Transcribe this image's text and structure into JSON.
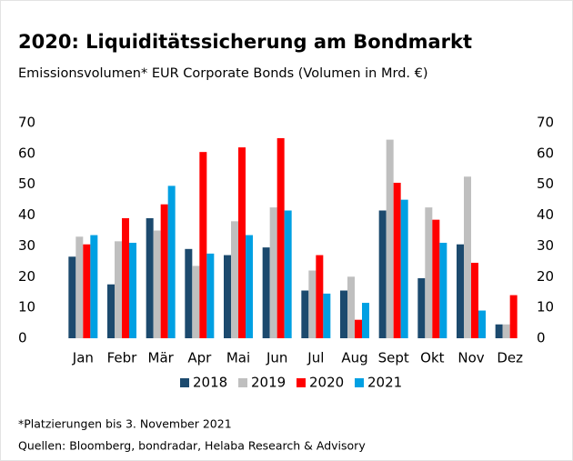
{
  "chart_data": {
    "type": "bar",
    "title": "2020: Liquiditätssicherung am Bondmarkt",
    "subtitle": "Emissionsvolumen* EUR Corporate Bonds (Volumen in Mrd. €)",
    "footnote": "*Platzierungen bis 3. November 2021",
    "source": "Quellen: Bloomberg, bondradar, Helaba Research & Advisory",
    "categories": [
      "Jan",
      "Febr",
      "Mär",
      "Apr",
      "Mai",
      "Jun",
      "Jul",
      "Aug",
      "Sept",
      "Okt",
      "Nov",
      "Dez"
    ],
    "series": [
      {
        "name": "2018",
        "color": "#1c4a6e",
        "values": [
          26.5,
          17.5,
          39,
          29,
          27,
          29.5,
          15.5,
          15.5,
          41.5,
          19.5,
          30.5,
          4.5
        ]
      },
      {
        "name": "2019",
        "color": "#bfbfbf",
        "values": [
          33,
          31.5,
          35,
          23.5,
          38,
          42.5,
          22,
          20,
          64.5,
          42.5,
          52.5,
          4.5
        ]
      },
      {
        "name": "2020",
        "color": "#ff0000",
        "values": [
          30.5,
          39,
          43.5,
          60.5,
          62,
          65,
          27,
          6,
          50.5,
          38.5,
          24.5,
          14
        ]
      },
      {
        "name": "2021",
        "color": "#00a0e3",
        "values": [
          33.5,
          31,
          49.5,
          27.5,
          33.5,
          41.5,
          14.5,
          11.5,
          45,
          31,
          9,
          null
        ]
      }
    ],
    "ylim": [
      0,
      70
    ],
    "yticks": [
      0,
      10,
      20,
      30,
      40,
      50,
      60,
      70
    ],
    "y2lim": [
      0,
      70
    ],
    "y2ticks": [
      0,
      10,
      20,
      30,
      40,
      50,
      60,
      70
    ],
    "grid": false,
    "legend": "bottom"
  }
}
